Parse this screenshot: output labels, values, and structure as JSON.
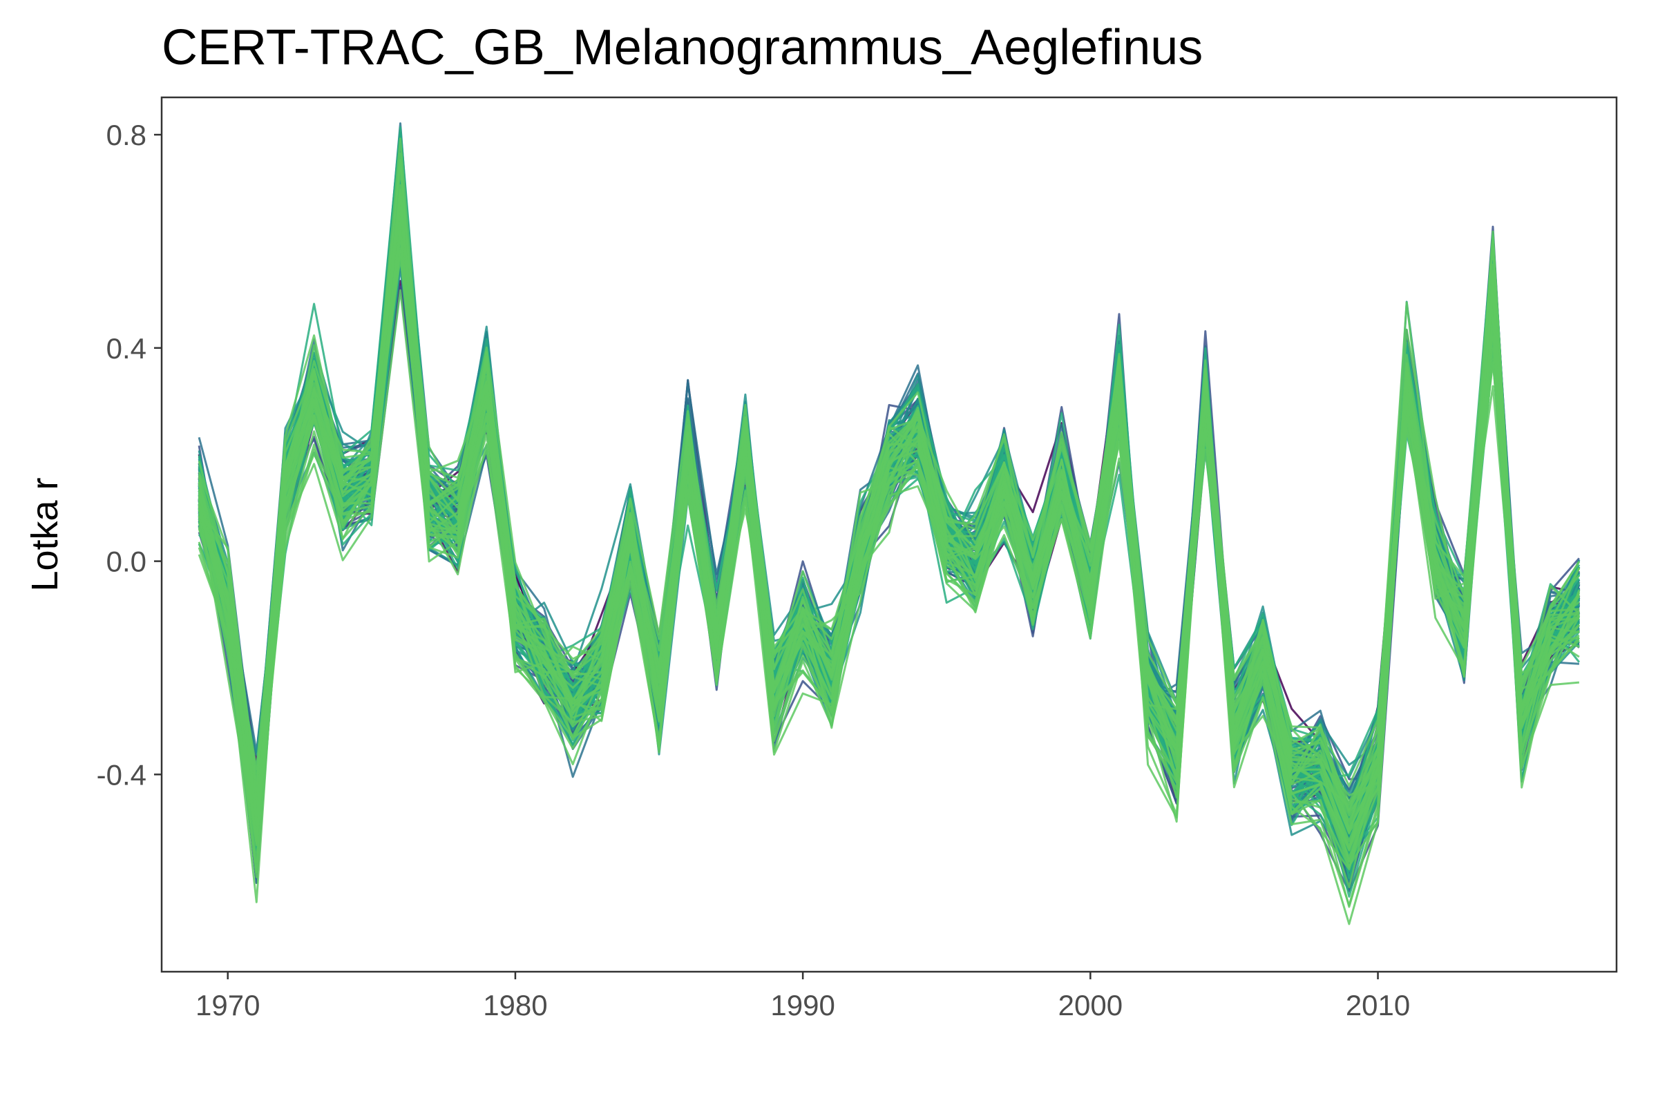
{
  "chart_data": {
    "type": "line",
    "title": "CERT-TRAC_GB_Melanogrammus_Aeglefinus",
    "xlabel": "",
    "ylabel": "Lotka r",
    "xlim": [
      1967.7,
      2018.3
    ],
    "ylim": [
      -0.77,
      0.87
    ],
    "x_ticks": [
      1970,
      1980,
      1990,
      2000,
      2010
    ],
    "x_tick_labels": [
      "1970",
      "1980",
      "1990",
      "2000",
      "2010"
    ],
    "y_ticks": [
      0.8,
      0.4,
      0.0,
      -0.4
    ],
    "y_tick_labels": [
      "0.8",
      "0.4",
      "0.0",
      "-0.4"
    ],
    "grid": false,
    "legend": "none",
    "palette": [
      "#440154",
      "#3b528b",
      "#2c728e",
      "#21918c",
      "#28ae80",
      "#5ec962"
    ],
    "x": [
      1969,
      1970,
      1971,
      1972,
      1973,
      1974,
      1975,
      1976,
      1977,
      1978,
      1979,
      1980,
      1981,
      1982,
      1983,
      1984,
      1985,
      1986,
      1987,
      1988,
      1989,
      1990,
      1991,
      1992,
      1993,
      1994,
      1995,
      1996,
      1997,
      1998,
      1999,
      2000,
      2001,
      2002,
      2003,
      2004,
      2005,
      2006,
      2007,
      2008,
      2009,
      2010,
      2011,
      2012,
      2013,
      2014,
      2015,
      2016,
      2017
    ],
    "central_values": [
      0.12,
      -0.08,
      -0.48,
      0.14,
      0.31,
      0.13,
      0.15,
      0.66,
      0.1,
      0.08,
      0.32,
      -0.1,
      -0.18,
      -0.27,
      -0.2,
      0.05,
      -0.25,
      0.21,
      -0.15,
      0.21,
      -0.24,
      -0.12,
      -0.21,
      0.02,
      0.18,
      0.24,
      0.04,
      0.0,
      0.15,
      -0.04,
      0.16,
      -0.06,
      0.32,
      -0.23,
      -0.35,
      0.31,
      -0.32,
      -0.18,
      -0.4,
      -0.38,
      -0.52,
      -0.38,
      0.33,
      0.01,
      -0.12,
      0.5,
      -0.3,
      -0.14,
      -0.09
    ],
    "series_count": 140
  }
}
